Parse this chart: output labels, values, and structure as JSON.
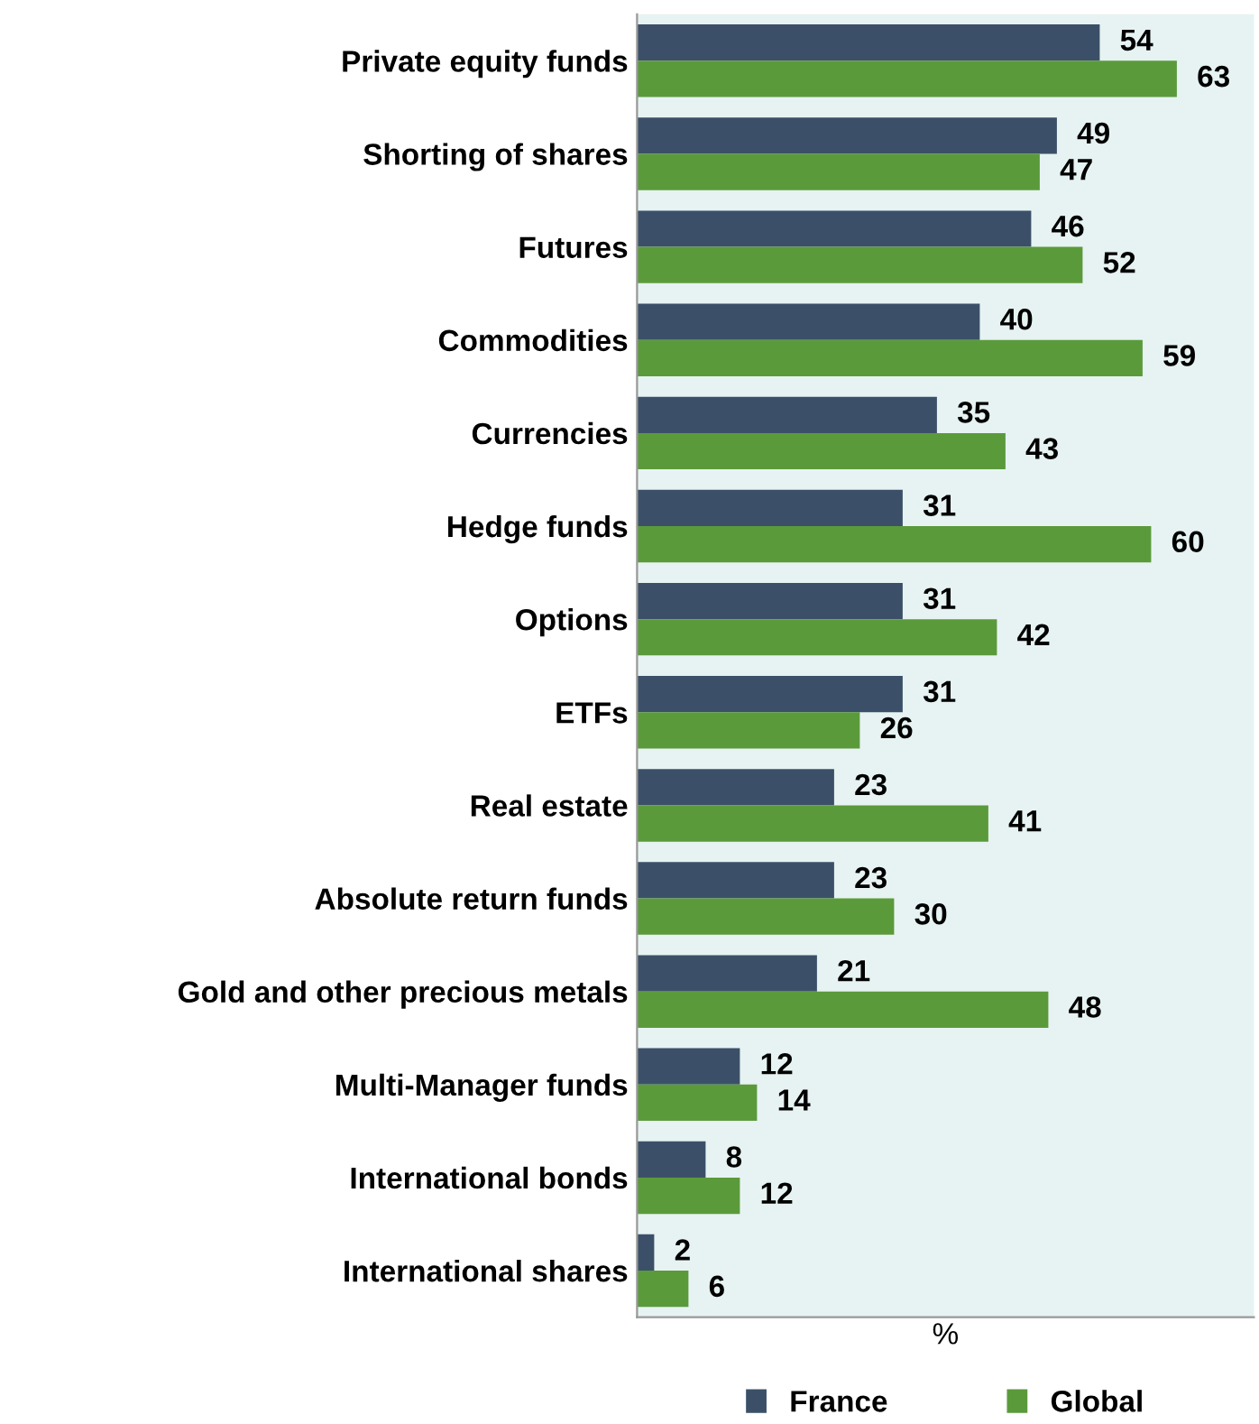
{
  "chart_data": {
    "type": "bar",
    "orientation": "horizontal",
    "xlabel": "%",
    "categories": [
      "Private equity funds",
      "Shorting of shares",
      "Futures",
      "Commodities",
      "Currencies",
      "Hedge funds",
      "Options",
      "ETFs",
      "Real estate",
      "Absolute return funds",
      "Gold and other precious metals",
      "Multi-Manager funds",
      "International bonds",
      "International shares"
    ],
    "series": [
      {
        "name": "France",
        "color": "#3b5068",
        "values": [
          54,
          49,
          46,
          40,
          35,
          31,
          31,
          31,
          23,
          23,
          21,
          12,
          8,
          2
        ]
      },
      {
        "name": "Global",
        "color": "#5b9a3b",
        "values": [
          63,
          47,
          52,
          59,
          43,
          60,
          42,
          26,
          41,
          30,
          48,
          14,
          12,
          6
        ]
      }
    ],
    "xlim": [
      0,
      72
    ],
    "data_labels": true,
    "tick_labels": "y",
    "legend": "bottom",
    "grid": false
  }
}
